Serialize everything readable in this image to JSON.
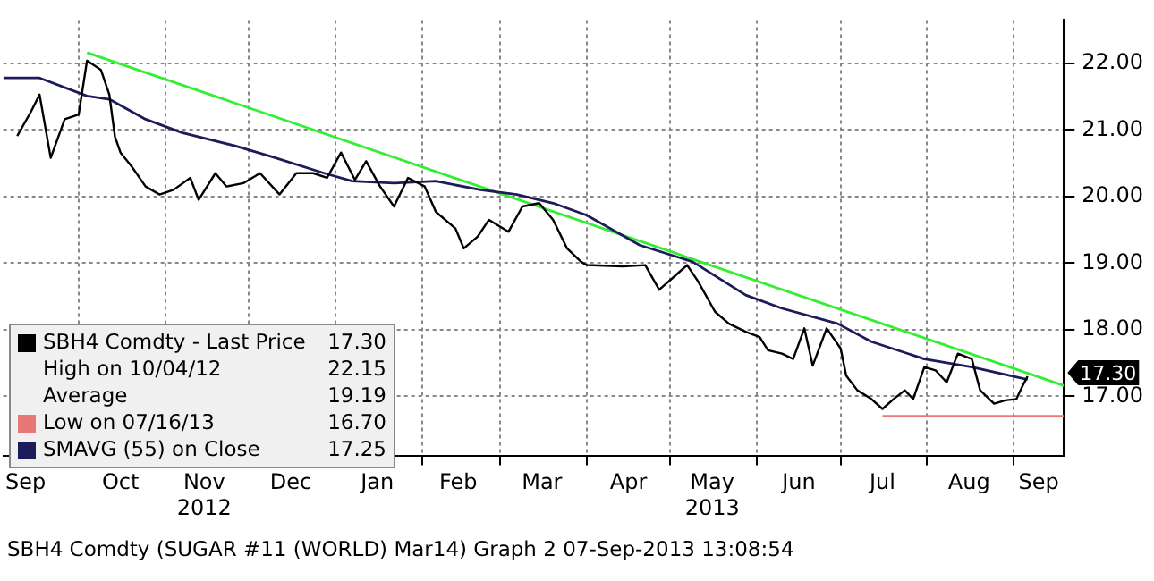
{
  "chart_data": {
    "type": "line",
    "xlim": [
      "2012-09-04",
      "2013-09-19"
    ],
    "xticks": [
      {
        "value": "2012-09-12",
        "label": "Sep"
      },
      {
        "value": "2012-10-01",
        "label": null
      },
      {
        "value": "2012-10-16",
        "label": "Oct"
      },
      {
        "value": "2012-11-01",
        "label": null
      },
      {
        "value": "2012-11-15",
        "label": "Nov\n2012"
      },
      {
        "value": "2012-12-01",
        "label": null
      },
      {
        "value": "2012-12-16",
        "label": "Dec"
      },
      {
        "value": "2013-01-01",
        "label": null
      },
      {
        "value": "2013-01-16",
        "label": "Jan"
      },
      {
        "value": "2013-02-01",
        "label": null
      },
      {
        "value": "2013-02-14",
        "label": "Feb"
      },
      {
        "value": "2013-03-01",
        "label": null
      },
      {
        "value": "2013-03-16",
        "label": "Mar"
      },
      {
        "value": "2013-04-01",
        "label": null
      },
      {
        "value": "2013-04-16",
        "label": "Apr"
      },
      {
        "value": "2013-05-01",
        "label": null
      },
      {
        "value": "2013-05-16",
        "label": "May\n2013"
      },
      {
        "value": "2013-06-01",
        "label": null
      },
      {
        "value": "2013-06-16",
        "label": "Jun"
      },
      {
        "value": "2013-07-01",
        "label": null
      },
      {
        "value": "2013-07-16",
        "label": "Jul"
      },
      {
        "value": "2013-08-01",
        "label": null
      },
      {
        "value": "2013-08-16",
        "label": "Aug"
      },
      {
        "value": "2013-09-01",
        "label": null
      },
      {
        "value": "2013-09-10",
        "label": "Sep"
      }
    ],
    "ylim": [
      16.1,
      22.65
    ],
    "yticks": [
      {
        "value": 17,
        "label": "17.00"
      },
      {
        "value": 18,
        "label": "18.00"
      },
      {
        "value": 19,
        "label": "19.00"
      },
      {
        "value": 20,
        "label": "20.00"
      },
      {
        "value": 21,
        "label": "21.00"
      },
      {
        "value": 22,
        "label": "22.00"
      }
    ],
    "grid": true,
    "legend": "bottom left",
    "marker": "none",
    "line_style": "solid",
    "series": [
      {
        "name": "SBH4 Comdty - Last Price 17.30",
        "color": "#000000",
        "x": [
          "2012-09-09",
          "2012-09-14",
          "2012-09-17",
          "2012-09-21",
          "2012-09-26",
          "2012-10-01",
          "2012-10-04",
          "2012-10-09",
          "2012-10-12",
          "2012-10-14",
          "2012-10-16",
          "2012-10-20",
          "2012-10-25",
          "2012-10-30",
          "2012-11-04",
          "2012-11-10",
          "2012-11-13",
          "2012-11-19",
          "2012-11-23",
          "2012-11-29",
          "2012-12-05",
          "2012-12-12",
          "2012-12-18",
          "2012-12-24",
          "2012-12-29",
          "2013-01-03",
          "2013-01-08",
          "2013-01-12",
          "2013-01-17",
          "2013-01-22",
          "2013-01-27",
          "2013-02-02",
          "2013-02-06",
          "2013-02-13",
          "2013-02-16",
          "2013-02-21",
          "2013-02-25",
          "2013-03-04",
          "2013-03-09",
          "2013-03-15",
          "2013-03-20",
          "2013-03-25",
          "2013-03-30",
          "2013-04-01",
          "2013-04-14",
          "2013-04-22",
          "2013-04-27",
          "2013-05-03",
          "2013-05-07",
          "2013-05-11",
          "2013-05-17",
          "2013-05-22",
          "2013-05-28",
          "2013-06-02",
          "2013-06-05",
          "2013-06-10",
          "2013-06-14",
          "2013-06-18",
          "2013-06-21",
          "2013-06-26",
          "2013-07-01",
          "2013-07-03",
          "2013-07-07",
          "2013-07-12",
          "2013-07-16",
          "2013-07-20",
          "2013-07-24",
          "2013-07-27",
          "2013-07-31",
          "2013-08-04",
          "2013-08-08",
          "2013-08-12",
          "2013-08-17",
          "2013-08-20",
          "2013-08-25",
          "2013-08-29",
          "2013-09-02",
          "2013-09-04",
          "2013-09-06"
        ],
        "values": [
          20.91,
          21.28,
          21.53,
          20.58,
          21.16,
          21.23,
          22.04,
          21.9,
          21.53,
          20.9,
          20.66,
          20.45,
          20.15,
          20.03,
          20.1,
          20.28,
          19.95,
          20.35,
          20.15,
          20.2,
          20.35,
          20.03,
          20.35,
          20.35,
          20.28,
          20.66,
          20.25,
          20.53,
          20.15,
          19.85,
          20.28,
          20.15,
          19.77,
          19.52,
          19.22,
          19.4,
          19.65,
          19.47,
          19.85,
          19.9,
          19.65,
          19.22,
          19.02,
          18.97,
          18.95,
          18.97,
          18.6,
          18.82,
          18.97,
          18.72,
          18.27,
          18.09,
          17.97,
          17.89,
          17.69,
          17.64,
          17.56,
          18.02,
          17.46,
          18.02,
          17.72,
          17.31,
          17.09,
          16.96,
          16.81,
          16.96,
          17.09,
          16.96,
          17.44,
          17.39,
          17.21,
          17.64,
          17.56,
          17.09,
          16.89,
          16.94,
          16.96,
          17.14,
          17.3
        ]
      },
      {
        "name": "SMAVG (55) on Close 17.25",
        "color": "#1c1c5a",
        "x": [
          "2012-09-04",
          "2012-09-17",
          "2012-10-04",
          "2012-10-12",
          "2012-10-25",
          "2012-11-07",
          "2012-11-26",
          "2012-12-09",
          "2012-12-28",
          "2013-01-07",
          "2013-01-22",
          "2013-02-06",
          "2013-02-22",
          "2013-03-07",
          "2013-03-20",
          "2013-04-01",
          "2013-04-20",
          "2013-05-09",
          "2013-05-28",
          "2013-06-10",
          "2013-06-30",
          "2013-07-12",
          "2013-07-31",
          "2013-08-17",
          "2013-09-06"
        ],
        "values": [
          21.78,
          21.78,
          21.51,
          21.46,
          21.16,
          20.96,
          20.76,
          20.6,
          20.35,
          20.23,
          20.2,
          20.23,
          20.1,
          20.03,
          19.9,
          19.72,
          19.27,
          19.02,
          18.52,
          18.32,
          18.09,
          17.82,
          17.56,
          17.44,
          17.25
        ]
      },
      {
        "name": "Low on 07/16/13 16.70",
        "color": "#e87878",
        "x": [
          "2013-07-16",
          "2013-09-19"
        ],
        "values": [
          16.7,
          16.7
        ]
      },
      {
        "color": "#33ee33",
        "x": [
          "2012-10-04",
          "2013-09-19"
        ],
        "values": [
          22.16,
          17.16
        ]
      }
    ],
    "annotations": [
      "High on 10/04/12 22.15",
      "Average 19.19",
      "SBH4 Comdty (SUGAR #11 (WORLD) Mar14) Graph 2 07-Sep-2013 13:08:54",
      {
        "text": "17.30",
        "x": "2013-09-06",
        "y": 17.3
      }
    ]
  }
}
